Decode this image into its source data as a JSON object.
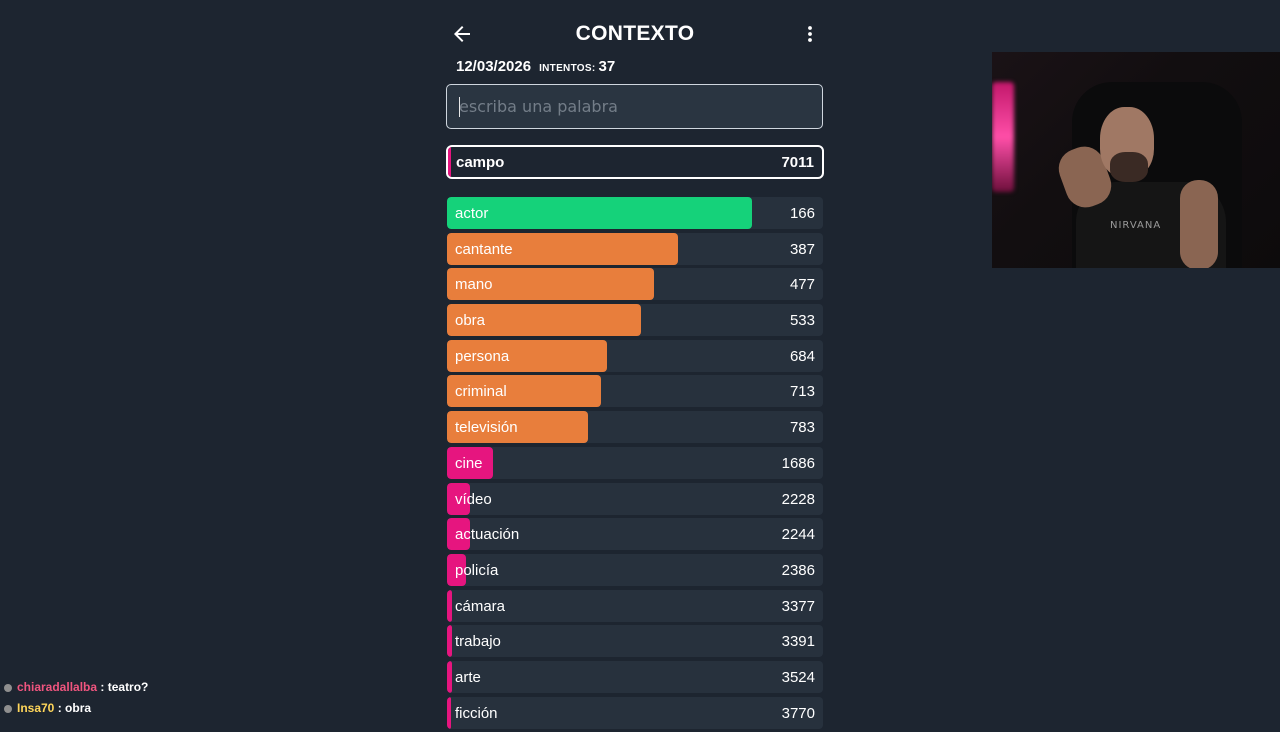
{
  "header": {
    "title": "CONTEXTO"
  },
  "info": {
    "date": "12/03/2026",
    "attempts_label": "INTENTOS:",
    "attempts": "37"
  },
  "search": {
    "placeholder": "escriba una palabra",
    "value": ""
  },
  "current_guess": {
    "word": "campo",
    "rank": "7011",
    "color": "#e6157f"
  },
  "colors": {
    "green": "#15d27a",
    "orange": "#e87e3c",
    "pink": "#e6157f"
  },
  "guesses": [
    {
      "word": "actor",
      "rank": "166",
      "color": "green",
      "fill": 0.81
    },
    {
      "word": "cantante",
      "rank": "387",
      "color": "orange",
      "fill": 0.615
    },
    {
      "word": "mano",
      "rank": "477",
      "color": "orange",
      "fill": 0.55
    },
    {
      "word": "obra",
      "rank": "533",
      "color": "orange",
      "fill": 0.515
    },
    {
      "word": "persona",
      "rank": "684",
      "color": "orange",
      "fill": 0.425
    },
    {
      "word": "criminal",
      "rank": "713",
      "color": "orange",
      "fill": 0.41
    },
    {
      "word": "televisión",
      "rank": "783",
      "color": "orange",
      "fill": 0.375
    },
    {
      "word": "cine",
      "rank": "1686",
      "color": "pink",
      "fill": 0.122
    },
    {
      "word": "vídeo",
      "rank": "2228",
      "color": "pink",
      "fill": 0.06
    },
    {
      "word": "actuación",
      "rank": "2244",
      "color": "pink",
      "fill": 0.06
    },
    {
      "word": "policía",
      "rank": "2386",
      "color": "pink",
      "fill": 0.05
    },
    {
      "word": "cámara",
      "rank": "3377",
      "color": "pink",
      "fill": 0.014
    },
    {
      "word": "trabajo",
      "rank": "3391",
      "color": "pink",
      "fill": 0.014
    },
    {
      "word": "arte",
      "rank": "3524",
      "color": "pink",
      "fill": 0.012
    },
    {
      "word": "ficción",
      "rank": "3770",
      "color": "pink",
      "fill": 0.01
    }
  ],
  "webcam": {
    "shirt_text": "NIRVANA"
  },
  "chat": [
    {
      "user": "chiaradallalba",
      "message": ": teatro?"
    },
    {
      "user": "Insa70",
      "message": ": obra"
    }
  ]
}
